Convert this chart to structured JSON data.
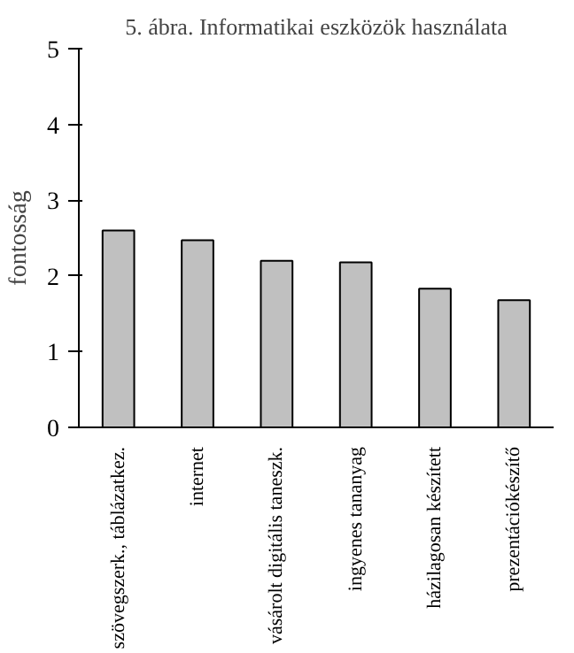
{
  "chart_data": {
    "type": "bar",
    "title": "5. ábra. Informatikai eszközök használata",
    "ylabel": "fontosság",
    "categories": [
      "szövegszerk., táblázatkez.",
      "internet",
      "vásárolt digitális taneszk.",
      "ingyenes tananyag",
      "házilagosan készített",
      "prezentációkészítő"
    ],
    "values": [
      2.6,
      2.47,
      2.2,
      2.18,
      1.83,
      1.68
    ],
    "color": "#c0c0c0",
    "ylim": [
      0,
      5
    ],
    "yticks": [
      0,
      1,
      2,
      3,
      4,
      5
    ],
    "grid": false
  }
}
